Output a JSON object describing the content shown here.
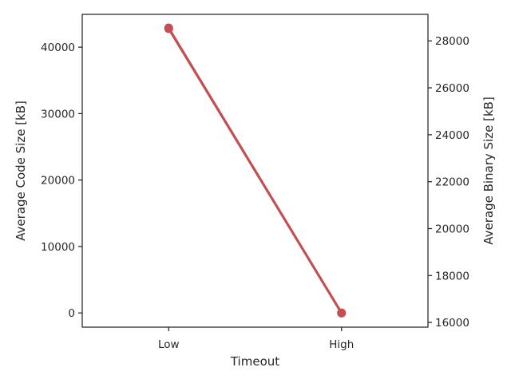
{
  "chart_data": {
    "type": "line",
    "categories": [
      "Low",
      "High"
    ],
    "xlabel": "Timeout",
    "series": [
      {
        "axis": "left",
        "values": [
          42800,
          0
        ],
        "color": "#c44e52"
      },
      {
        "axis": "right",
        "values": [
          28550,
          16400
        ],
        "color": "#c44e52"
      }
    ],
    "left_axis": {
      "label": "Average Code Size [kB]",
      "ticks": [
        0,
        10000,
        20000,
        30000,
        40000
      ],
      "tick_labels": [
        "0",
        "10000",
        "20000",
        "30000",
        "40000"
      ],
      "ylim": [
        -2140,
        44940
      ]
    },
    "right_axis": {
      "label": "Average Binary Size [kB]",
      "ticks": [
        16000,
        18000,
        20000,
        22000,
        24000,
        26000,
        28000
      ],
      "tick_labels": [
        "16000",
        "18000",
        "20000",
        "22000",
        "24000",
        "26000",
        "28000"
      ],
      "ylim": [
        15800,
        29130
      ]
    },
    "grid": false,
    "legend": "none"
  }
}
